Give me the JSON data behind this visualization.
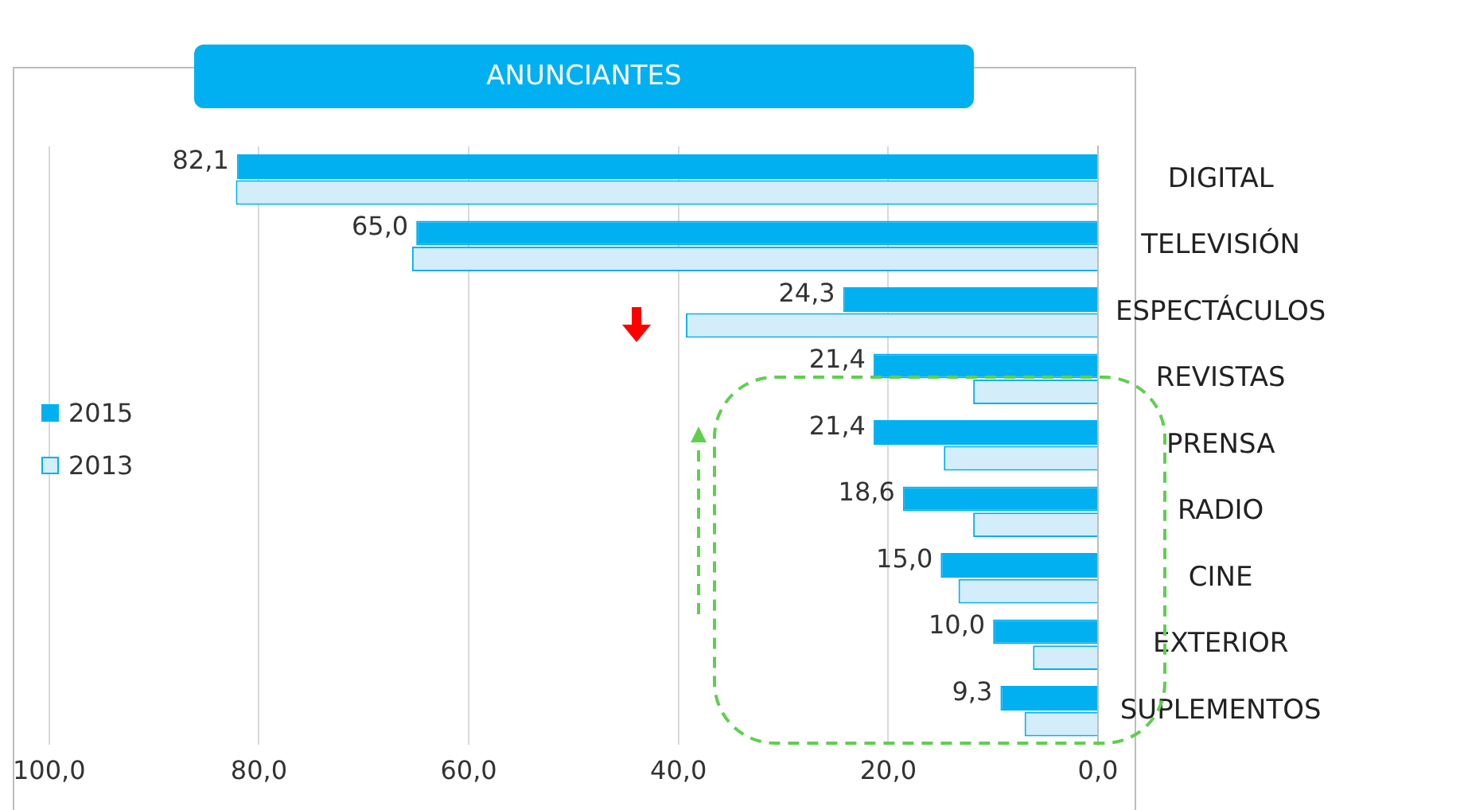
{
  "chart_data": {
    "type": "bar",
    "orientation": "horizontal",
    "title": "ANUNCIANTES",
    "categories": [
      "DIGITAL",
      "TELEVISIÓN",
      "ESPECTÁCULOS",
      "REVISTAS",
      "PRENSA",
      "RADIO",
      "CINE",
      "EXTERIOR",
      "SUPLEMENTOS"
    ],
    "series": [
      {
        "name": "2015",
        "color": "#00b0f0",
        "values": [
          82.1,
          65.0,
          24.3,
          21.4,
          21.4,
          18.6,
          15.0,
          10.0,
          9.3
        ],
        "value_labels": [
          "82,1",
          "65,0",
          "24,3",
          "21,4",
          "21,4",
          "18,6",
          "15,0",
          "10,0",
          "9,3"
        ]
      },
      {
        "name": "2013",
        "color": "#d4edfa",
        "values": [
          82.2,
          65.4,
          39.3,
          11.9,
          14.7,
          11.9,
          13.3,
          6.2,
          7.0
        ]
      }
    ],
    "xlim": [
      100,
      0
    ],
    "xticks": [
      {
        "value": 100,
        "label": "100,0"
      },
      {
        "value": 80,
        "label": "80,0"
      },
      {
        "value": 60,
        "label": "60,0"
      },
      {
        "value": 40,
        "label": "40,0"
      },
      {
        "value": 20,
        "label": "20,0"
      },
      {
        "value": 0,
        "label": "0,0"
      }
    ],
    "grid": "x",
    "legend": "left"
  }
}
